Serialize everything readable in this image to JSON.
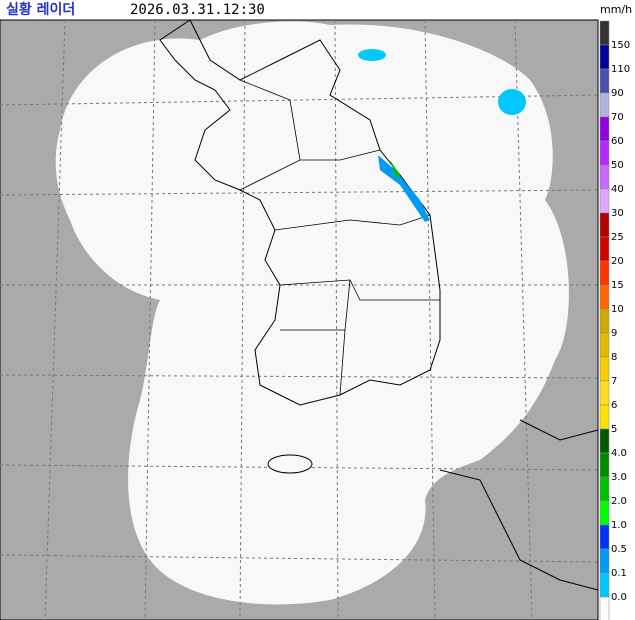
{
  "header": {
    "title": "실황 레이더",
    "time": "2026.03.31.12:30"
  },
  "legend": {
    "unit": "mm/h",
    "labels": [
      "150",
      "110",
      "90",
      "70",
      "60",
      "50",
      "40",
      "30",
      "25",
      "20",
      "15",
      "10",
      "9",
      "8",
      "7",
      "6",
      "5",
      "4.0",
      "3.0",
      "2.0",
      "1.0",
      "0.5",
      "0.1",
      "0.0"
    ],
    "colors": [
      "#333333",
      "#00039a",
      "#4c4eb1",
      "#b3b4de",
      "#9300e4",
      "#b229ff",
      "#c969ff",
      "#e0a9ff",
      "#b40000",
      "#d20000",
      "#ff3200",
      "#ff6600",
      "#ccaa00",
      "#e0b900",
      "#f9cd00",
      "#ffdc1f",
      "#ffe100",
      "#005a00",
      "#008c00",
      "#00be00",
      "#00ff00",
      "#0033f5",
      "#009bf5",
      "#00c8ff",
      "#ffffff"
    ]
  }
}
